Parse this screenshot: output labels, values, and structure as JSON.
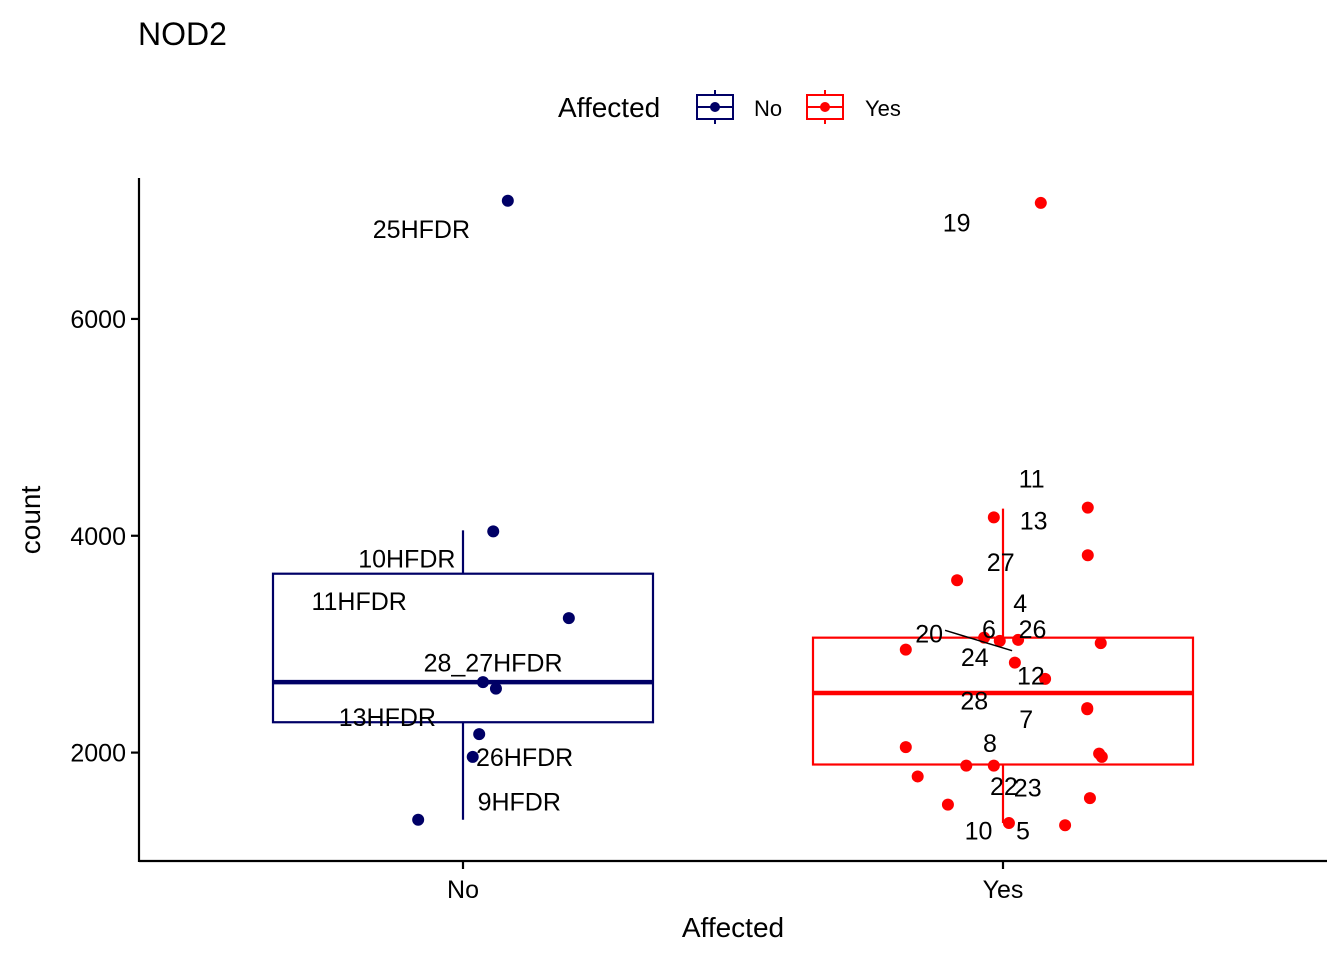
{
  "chart_data": {
    "type": "boxplot",
    "title": "NOD2",
    "xlabel": "Affected",
    "ylabel": "count",
    "ylim": [
      1000,
      7300
    ],
    "yticks": [
      2000,
      4000,
      6000
    ],
    "categories": [
      "No",
      "Yes"
    ],
    "legend": {
      "title": "Affected",
      "position": "top",
      "entries": [
        "No",
        "Yes"
      ]
    },
    "colors": {
      "No": "#000066",
      "Yes": "#ff0000",
      "axis": "#000000",
      "leader": "#000000"
    },
    "series": [
      {
        "name": "No",
        "box": {
          "q1": 2280,
          "median": 2650,
          "q3": 3650,
          "whisker_low": 1380,
          "whisker_high": 4050
        },
        "points": [
          {
            "label": "25HFDR",
            "y": 7090,
            "jitter": 0.083,
            "label_y": 6830,
            "label_dx": -0.07,
            "anchor": "end"
          },
          {
            "label": "10HFDR",
            "y": 4040,
            "jitter": 0.056,
            "label_y": 3790,
            "label_dx": -0.07,
            "anchor": "end"
          },
          {
            "label": "11HFDR",
            "y": 3240,
            "jitter": 0.196,
            "label_y": 3400,
            "label_dx": -0.3,
            "anchor": "end"
          },
          {
            "label": "28_27HFDR",
            "y": 2650,
            "jitter": 0.037,
            "label_y": 2830,
            "label_dx": -0.11,
            "anchor": "start"
          },
          {
            "label": "",
            "y": 2590,
            "jitter": 0.061,
            "label_y": 2590,
            "label_dx": 0,
            "anchor": "start"
          },
          {
            "label": "13HFDR",
            "y": 2170,
            "jitter": 0.03,
            "label_y": 2330,
            "label_dx": -0.08,
            "anchor": "end"
          },
          {
            "label": "26HFDR",
            "y": 1960,
            "jitter": 0.018,
            "label_y": 1960,
            "label_dx": 0.006,
            "anchor": "start"
          },
          {
            "label": "9HFDR",
            "y": 1380,
            "jitter": -0.083,
            "label_y": 1550,
            "label_dx": 0.11,
            "anchor": "start"
          }
        ]
      },
      {
        "name": "Yes",
        "box": {
          "q1": 1890,
          "median": 2550,
          "q3": 3060,
          "whisker_low": 1350,
          "whisker_high": 4250
        },
        "points": [
          {
            "label": "19",
            "y": 7070,
            "jitter": 0.07,
            "label_y": 6890,
            "label_dx": -0.13,
            "anchor": "end"
          },
          {
            "label": "11",
            "y": 4170,
            "jitter": -0.017,
            "label_y": 4530,
            "label_dx": 0.046,
            "anchor": "start"
          },
          {
            "label": "13",
            "y": 3820,
            "jitter": 0.157,
            "label_y": 4140,
            "label_dx": -0.126,
            "anchor": "start"
          },
          {
            "label": "",
            "y": 4260,
            "jitter": 0.157,
            "label_y": 4260,
            "label_dx": 0,
            "anchor": "start"
          },
          {
            "label": "27",
            "y": 3590,
            "jitter": -0.085,
            "label_y": 3760,
            "label_dx": 0.055,
            "anchor": "start"
          },
          {
            "label": "4",
            "y": 3040,
            "jitter": 0.028,
            "label_y": 3380,
            "label_dx": -0.009,
            "anchor": "start"
          },
          {
            "label": "20",
            "y": 3060,
            "jitter": -0.035,
            "label_y": 3100,
            "label_dx": -0.076,
            "anchor": "end"
          },
          {
            "label": "6",
            "y": 3030,
            "jitter": -0.006,
            "label_y": 3140,
            "label_dx": -0.033,
            "anchor": "start"
          },
          {
            "label": "26",
            "y": 3010,
            "jitter": 0.181,
            "label_y": 3140,
            "label_dx": -0.152,
            "anchor": "start"
          },
          {
            "label": "",
            "y": 2950,
            "jitter": -0.18,
            "label_y": 2950,
            "label_dx": 0,
            "anchor": "start"
          },
          {
            "label": "24",
            "y": 2830,
            "jitter": 0.022,
            "label_y": 2880,
            "label_dx": -0.1,
            "anchor": "start"
          },
          {
            "label": "12",
            "y": 2680,
            "jitter": 0.078,
            "label_y": 2710,
            "label_dx": -0.052,
            "anchor": "start"
          },
          {
            "label": "28",
            "y": 2410,
            "jitter": 0.156,
            "label_y": 2480,
            "label_dx": -0.235,
            "anchor": "start"
          },
          {
            "label": "7",
            "y": 2400,
            "jitter": 0.156,
            "label_y": 2310,
            "label_dx": -0.126,
            "anchor": "start"
          },
          {
            "label": "8",
            "y": 1880,
            "jitter": -0.017,
            "label_y": 2090,
            "label_dx": -0.02,
            "anchor": "start"
          },
          {
            "label": "",
            "y": 2050,
            "jitter": -0.18,
            "label_y": 2050,
            "label_dx": 0,
            "anchor": "start"
          },
          {
            "label": "",
            "y": 1990,
            "jitter": 0.178,
            "label_y": 1990,
            "label_dx": 0,
            "anchor": "start"
          },
          {
            "label": "",
            "y": 1960,
            "jitter": 0.183,
            "label_y": 1960,
            "label_dx": 0,
            "anchor": "start"
          },
          {
            "label": "",
            "y": 1880,
            "jitter": -0.068,
            "label_y": 1880,
            "label_dx": 0,
            "anchor": "start"
          },
          {
            "label": "",
            "y": 1780,
            "jitter": -0.158,
            "label_y": 1780,
            "label_dx": 0,
            "anchor": "start"
          },
          {
            "label": "22",
            "y": 1520,
            "jitter": -0.102,
            "label_y": 1690,
            "label_dx": 0.078,
            "anchor": "start"
          },
          {
            "label": "23",
            "y": 1580,
            "jitter": 0.161,
            "label_y": 1680,
            "label_dx": -0.141,
            "anchor": "start"
          },
          {
            "label": "10",
            "y": 1350,
            "jitter": 0.011,
            "label_y": 1280,
            "label_dx": -0.082,
            "anchor": "start"
          },
          {
            "label": "5",
            "y": 1330,
            "jitter": 0.115,
            "label_y": 1280,
            "label_dx": -0.091,
            "anchor": "start"
          }
        ]
      }
    ]
  }
}
